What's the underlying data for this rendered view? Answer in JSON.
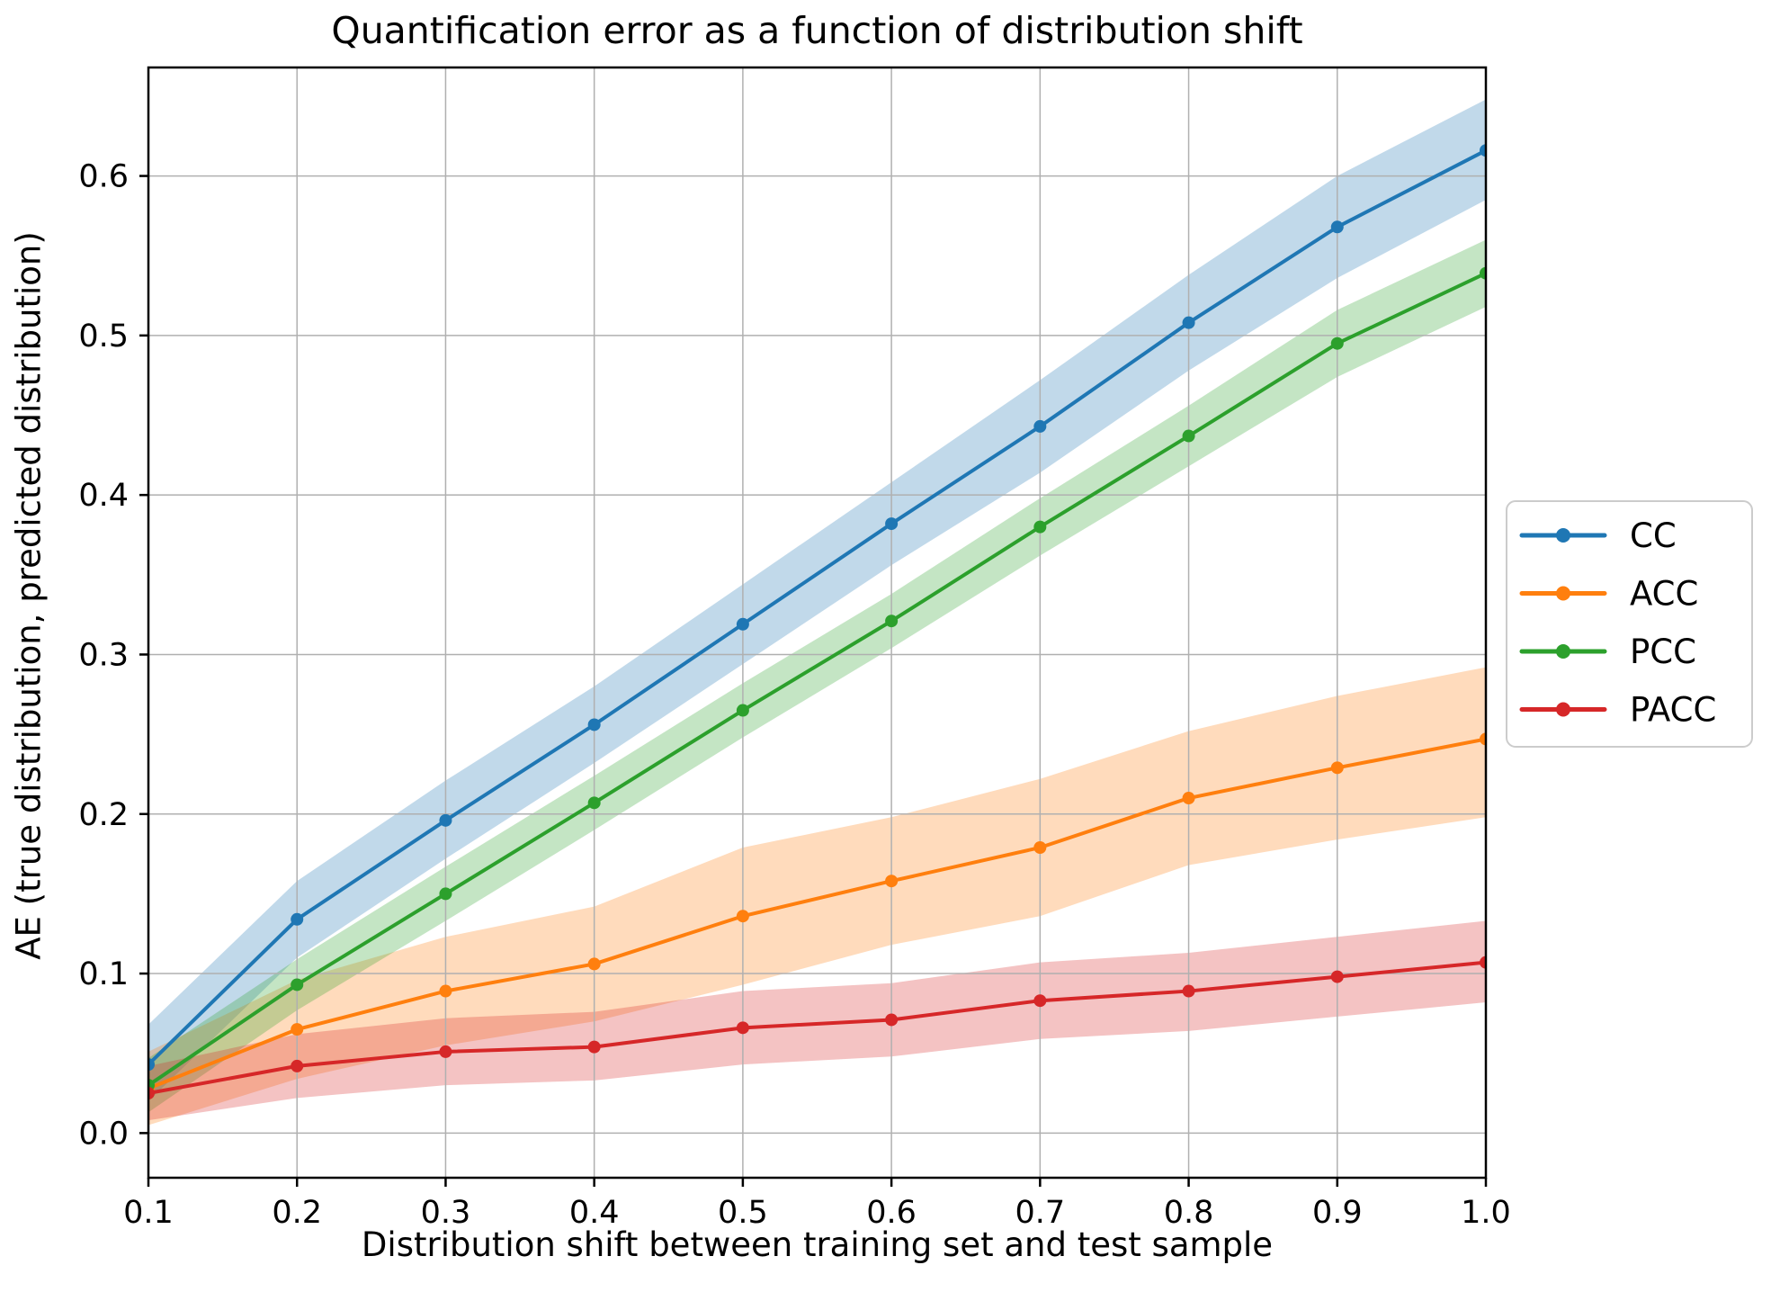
{
  "title": "Quantification error as a function of distribution shift",
  "chart_data": {
    "type": "line",
    "title": "Quantification error as a function of distribution shift",
    "xlabel": "Distribution shift between training set and test sample",
    "ylabel": "AE (true distribution, predicted distribution)",
    "x": [
      0.1,
      0.2,
      0.3,
      0.4,
      0.5,
      0.6,
      0.7,
      0.8,
      0.9,
      1.0
    ],
    "x_tick_labels": [
      "0.1",
      "0.2",
      "0.3",
      "0.4",
      "0.5",
      "0.6",
      "0.7",
      "0.8",
      "0.9",
      "1.0"
    ],
    "y_ticks": [
      0.0,
      0.1,
      0.2,
      0.3,
      0.4,
      0.5,
      0.6
    ],
    "y_tick_labels": [
      "0.0",
      "0.1",
      "0.2",
      "0.3",
      "0.4",
      "0.5",
      "0.6"
    ],
    "xlim": [
      0.1,
      1.0
    ],
    "ylim": [
      -0.028,
      0.668
    ],
    "grid": true,
    "grid_color": "#b0b0b0",
    "axis_color": "#000000",
    "background": "#ffffff",
    "band_alpha": 0.28,
    "legend_position": "right-outside",
    "series": [
      {
        "name": "CC",
        "color": "#1f77b4",
        "values": [
          0.043,
          0.134,
          0.196,
          0.256,
          0.319,
          0.382,
          0.443,
          0.508,
          0.568,
          0.616
        ],
        "band_low": [
          0.02,
          0.11,
          0.172,
          0.232,
          0.294,
          0.356,
          0.414,
          0.478,
          0.536,
          0.585
        ],
        "band_high": [
          0.068,
          0.158,
          0.221,
          0.28,
          0.344,
          0.408,
          0.472,
          0.538,
          0.6,
          0.648
        ]
      },
      {
        "name": "ACC",
        "color": "#ff7f0e",
        "values": [
          0.028,
          0.065,
          0.089,
          0.106,
          0.136,
          0.158,
          0.179,
          0.21,
          0.229,
          0.247
        ],
        "band_low": [
          0.005,
          0.034,
          0.055,
          0.07,
          0.093,
          0.118,
          0.136,
          0.168,
          0.184,
          0.198
        ],
        "band_high": [
          0.051,
          0.096,
          0.123,
          0.142,
          0.179,
          0.198,
          0.222,
          0.252,
          0.274,
          0.292
        ]
      },
      {
        "name": "PCC",
        "color": "#2ca02c",
        "values": [
          0.03,
          0.093,
          0.15,
          0.207,
          0.265,
          0.321,
          0.38,
          0.437,
          0.495,
          0.539
        ],
        "band_low": [
          0.013,
          0.077,
          0.133,
          0.19,
          0.248,
          0.304,
          0.362,
          0.418,
          0.474,
          0.518
        ],
        "band_high": [
          0.047,
          0.109,
          0.167,
          0.224,
          0.282,
          0.338,
          0.398,
          0.456,
          0.516,
          0.56
        ]
      },
      {
        "name": "PACC",
        "color": "#d62728",
        "values": [
          0.025,
          0.042,
          0.051,
          0.054,
          0.066,
          0.071,
          0.083,
          0.089,
          0.098,
          0.107
        ],
        "band_low": [
          0.008,
          0.022,
          0.03,
          0.033,
          0.043,
          0.048,
          0.059,
          0.064,
          0.073,
          0.082
        ],
        "band_high": [
          0.042,
          0.062,
          0.072,
          0.076,
          0.089,
          0.094,
          0.107,
          0.113,
          0.123,
          0.133
        ]
      }
    ]
  }
}
